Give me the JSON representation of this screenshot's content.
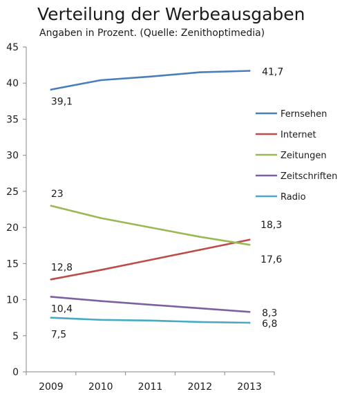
{
  "chart_data": {
    "type": "line",
    "title": "Verteilung der Werbeausgaben",
    "subtitle": "Angaben in Prozent. (Quelle: Zenithoptimedia)",
    "xlabel": "",
    "ylabel": "",
    "categories": [
      "2009",
      "2010",
      "2011",
      "2012",
      "2013"
    ],
    "ylim": [
      0,
      45
    ],
    "yticks": [
      0,
      5,
      10,
      15,
      20,
      25,
      30,
      35,
      40,
      45
    ],
    "grid": false,
    "legend_position": "right",
    "series": [
      {
        "name": "Fernsehen",
        "color": "#4a7ebb",
        "values": [
          39.1,
          40.4,
          40.9,
          41.5,
          41.7
        ],
        "labels": [
          {
            "index": 0,
            "text": "39,1"
          },
          {
            "index": 4,
            "text": "41,7"
          }
        ]
      },
      {
        "name": "Internet",
        "color": "#be4b48",
        "values": [
          12.8,
          14.1,
          15.5,
          16.9,
          18.3
        ],
        "labels": [
          {
            "index": 0,
            "text": "12,8"
          },
          {
            "index": 4,
            "text": "18,3"
          }
        ]
      },
      {
        "name": "Zeitungen",
        "color": "#98b954",
        "values": [
          23.0,
          21.3,
          20.0,
          18.7,
          17.6
        ],
        "labels": [
          {
            "index": 0,
            "text": "23"
          },
          {
            "index": 4,
            "text": "17,6"
          }
        ]
      },
      {
        "name": "Zeitschriften",
        "color": "#7d60a0",
        "values": [
          10.4,
          9.8,
          9.3,
          8.8,
          8.3
        ],
        "labels": [
          {
            "index": 0,
            "text": "10,4"
          },
          {
            "index": 4,
            "text": "8,3"
          }
        ]
      },
      {
        "name": "Radio",
        "color": "#46aac5",
        "values": [
          7.5,
          7.2,
          7.1,
          6.9,
          6.8
        ],
        "labels": [
          {
            "index": 0,
            "text": "7,5"
          },
          {
            "index": 4,
            "text": "6,8"
          }
        ]
      }
    ]
  }
}
